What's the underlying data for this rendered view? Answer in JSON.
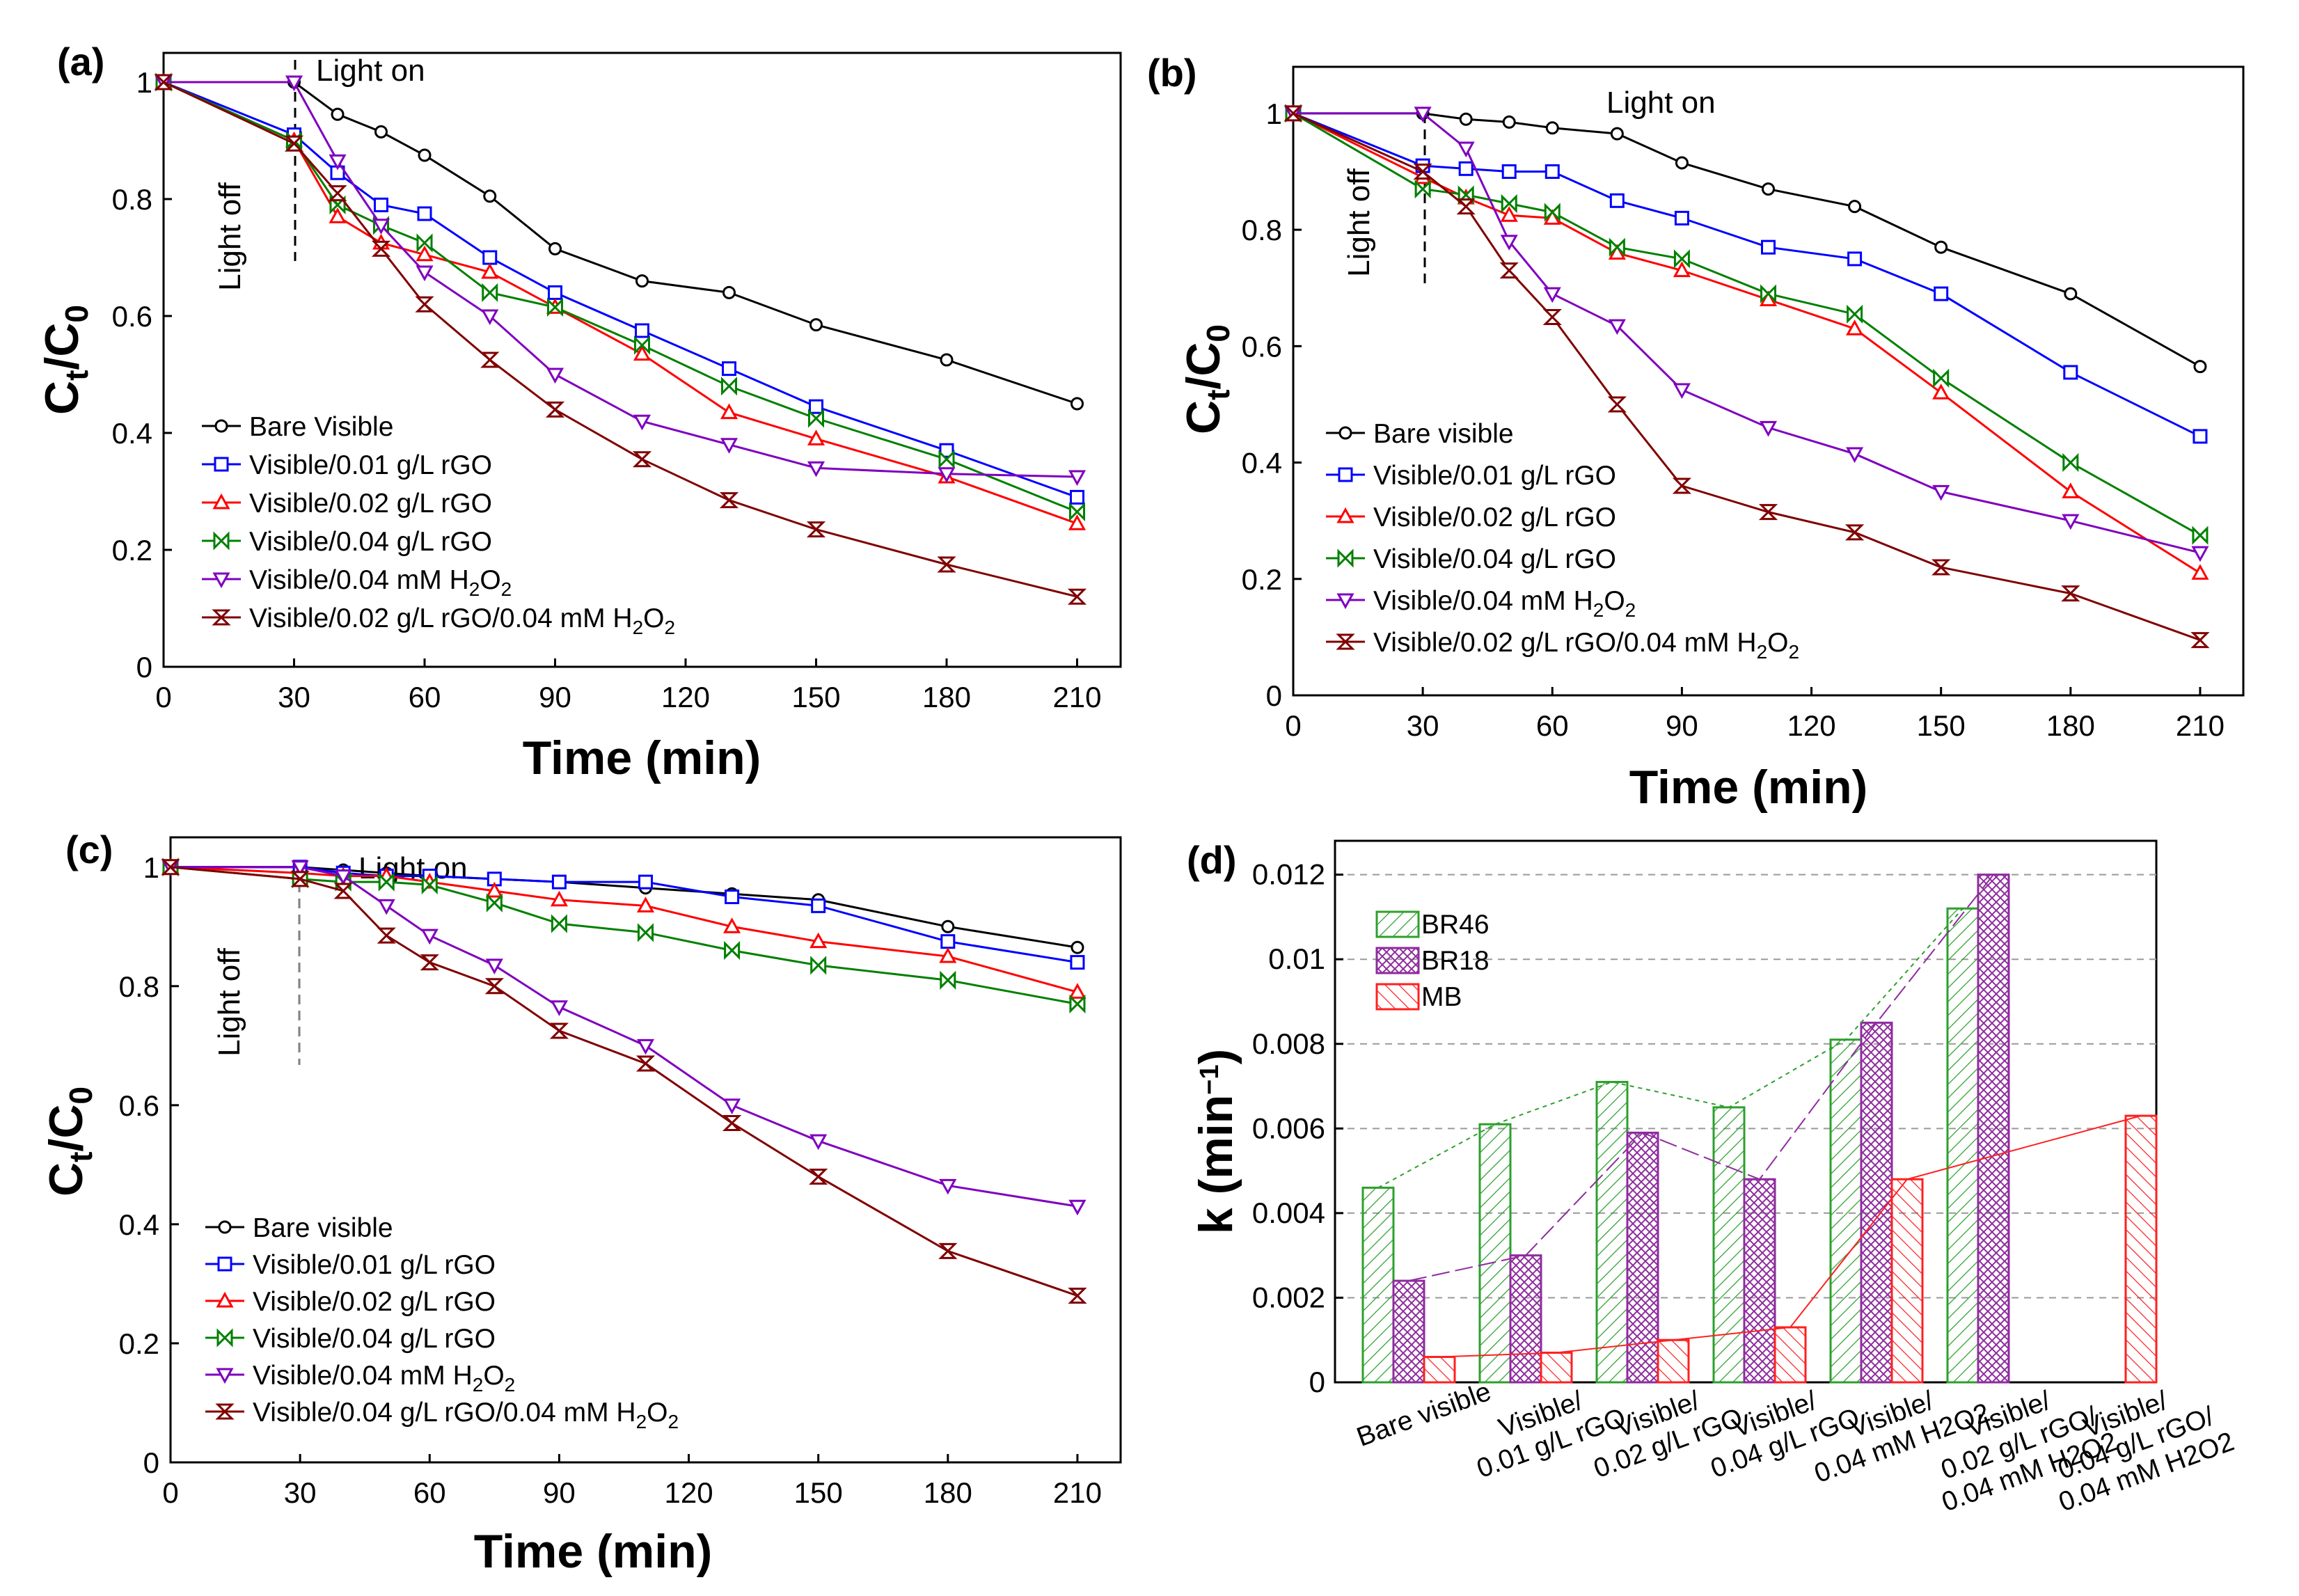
{
  "figure": {
    "panel_count": 4
  },
  "chart_data": [
    {
      "id": "a",
      "type": "line",
      "panel_label": "(a)",
      "xlabel": "Time (min)",
      "ylabel": "Ct/C0",
      "ylabel_main": "C",
      "ylabel_sub1": "t",
      "ylabel_slash": "/C",
      "ylabel_sub2": "0",
      "xlim": [
        0,
        220
      ],
      "ylim": [
        0,
        1.05
      ],
      "xticks": [
        0,
        30,
        60,
        90,
        120,
        150,
        180,
        210
      ],
      "yticks": [
        0,
        0.2,
        0.4,
        0.6,
        0.8,
        1
      ],
      "ytick_labels": [
        "0",
        "0.2",
        "0.4",
        "0.6",
        "0.8",
        "1"
      ],
      "annotations": {
        "light_on": "Light on",
        "light_off": "Light off"
      },
      "x": [
        0,
        30,
        40,
        50,
        60,
        75,
        90,
        110,
        130,
        150,
        180,
        210
      ],
      "series": [
        {
          "name": "Bare Visible",
          "color": "#000000",
          "marker": "circle",
          "values": [
            1,
            1,
            0.945,
            0.915,
            0.875,
            0.805,
            0.715,
            0.66,
            0.64,
            0.585,
            0.525,
            0.45
          ]
        },
        {
          "name": "Visible/0.01 g/L rGO",
          "color": "#0000ff",
          "marker": "square",
          "values": [
            1,
            0.91,
            0.845,
            0.79,
            0.775,
            0.7,
            0.64,
            0.575,
            0.51,
            0.445,
            0.37,
            0.29
          ]
        },
        {
          "name": "Visible/0.02 g/L rGO",
          "color": "#ff0000",
          "marker": "triangle-up",
          "values": [
            1,
            0.9,
            0.77,
            0.725,
            0.705,
            0.675,
            0.615,
            0.535,
            0.435,
            0.39,
            0.325,
            0.245
          ]
        },
        {
          "name": "Visible/0.04 g/L rGO",
          "color": "#008000",
          "marker": "bowtie",
          "values": [
            1,
            0.9,
            0.79,
            0.755,
            0.725,
            0.64,
            0.615,
            0.55,
            0.48,
            0.425,
            0.355,
            0.265
          ]
        },
        {
          "name": "Visible/0.04 mM H2O2",
          "name_main": "Visible/0.04 mM H",
          "name_sub": "2",
          "name_mid": "O",
          "name_sub2": "2",
          "color": "#7f00bf",
          "marker": "triangle-down",
          "values": [
            1,
            1,
            0.865,
            0.755,
            0.675,
            0.6,
            0.5,
            0.42,
            0.38,
            0.34,
            0.33,
            0.325
          ]
        },
        {
          "name": "Visible/0.02 g/L rGO/0.04 mM H2O2",
          "name_main": "Visible/0.02 g/L rGO/0.04 mM H",
          "name_sub": "2",
          "name_mid": "O",
          "name_sub2": "2",
          "color": "#800000",
          "marker": "hourglass",
          "values": [
            1,
            0.895,
            0.81,
            0.715,
            0.62,
            0.525,
            0.44,
            0.355,
            0.285,
            0.235,
            0.175,
            0.12
          ]
        }
      ]
    },
    {
      "id": "b",
      "type": "line",
      "panel_label": "(b)",
      "xlabel": "Time (min)",
      "ylabel": "Ct/C0",
      "ylabel_main": "C",
      "ylabel_sub1": "t",
      "ylabel_slash": "/C",
      "ylabel_sub2": "0",
      "xlim": [
        0,
        220
      ],
      "ylim": [
        0,
        1.08
      ],
      "xticks": [
        0,
        30,
        60,
        90,
        120,
        150,
        180,
        210
      ],
      "yticks": [
        0,
        0.2,
        0.4,
        0.6,
        0.8,
        1
      ],
      "ytick_labels": [
        "0",
        "0.2",
        "0.4",
        "0.6",
        "0.8",
        "1"
      ],
      "annotations": {
        "light_on": "Light on",
        "light_off": "Light off"
      },
      "x": [
        0,
        30,
        40,
        50,
        60,
        75,
        90,
        110,
        130,
        150,
        180,
        210
      ],
      "series": [
        {
          "name": "Bare visible",
          "color": "#000000",
          "marker": "circle",
          "values": [
            1,
            1,
            0.99,
            0.985,
            0.975,
            0.965,
            0.915,
            0.87,
            0.84,
            0.77,
            0.69,
            0.565
          ]
        },
        {
          "name": "Visible/0.01 g/L rGO",
          "color": "#0000ff",
          "marker": "square",
          "values": [
            1,
            0.91,
            0.905,
            0.9,
            0.9,
            0.85,
            0.82,
            0.77,
            0.75,
            0.69,
            0.555,
            0.445
          ]
        },
        {
          "name": "Visible/0.02 g/L rGO",
          "color": "#ff0000",
          "marker": "triangle-up",
          "values": [
            1,
            0.89,
            0.855,
            0.825,
            0.82,
            0.76,
            0.73,
            0.68,
            0.63,
            0.52,
            0.35,
            0.21
          ]
        },
        {
          "name": "Visible/0.04 g/L rGO",
          "color": "#008000",
          "marker": "bowtie",
          "values": [
            1,
            0.87,
            0.86,
            0.845,
            0.83,
            0.77,
            0.75,
            0.69,
            0.655,
            0.545,
            0.4,
            0.275
          ]
        },
        {
          "name": "Visible/0.04 mM H2O2",
          "name_main": "Visible/0.04 mM H",
          "name_sub": "2",
          "name_mid": "O",
          "name_sub2": "2",
          "color": "#7f00bf",
          "marker": "triangle-down",
          "values": [
            1,
            1,
            0.94,
            0.78,
            0.69,
            0.635,
            0.525,
            0.46,
            0.415,
            0.35,
            0.3,
            0.245
          ]
        },
        {
          "name": "Visible/0.02 g/L rGO/0.04 mM H2O2",
          "name_main": "Visible/0.02 g/L rGO/0.04 mM H",
          "name_sub": "2",
          "name_mid": "O",
          "name_sub2": "2",
          "color": "#800000",
          "marker": "hourglass",
          "values": [
            1,
            0.9,
            0.84,
            0.73,
            0.65,
            0.5,
            0.36,
            0.315,
            0.28,
            0.22,
            0.175,
            0.095
          ]
        }
      ]
    },
    {
      "id": "c",
      "type": "line",
      "panel_label": "(c)",
      "xlabel": "Time (min)",
      "ylabel": "Ct/C0",
      "ylabel_main": "C",
      "ylabel_sub1": "t",
      "ylabel_slash": "/C",
      "ylabel_sub2": "0",
      "xlim": [
        0,
        220
      ],
      "ylim": [
        0,
        1.05
      ],
      "xticks": [
        0,
        30,
        60,
        90,
        120,
        150,
        180,
        210
      ],
      "yticks": [
        0,
        0.2,
        0.4,
        0.6,
        0.8,
        1
      ],
      "ytick_labels": [
        "0",
        "0.2",
        "0.4",
        "0.6",
        "0.8",
        "1"
      ],
      "annotations": {
        "light_on": "Light on",
        "light_off": "Light off"
      },
      "x": [
        0,
        30,
        40,
        50,
        60,
        75,
        90,
        110,
        130,
        150,
        180,
        210
      ],
      "series": [
        {
          "name": "Bare visible",
          "color": "#000000",
          "marker": "circle",
          "values": [
            1,
            1,
            0.995,
            0.99,
            0.985,
            0.98,
            0.975,
            0.965,
            0.955,
            0.945,
            0.9,
            0.865
          ]
        },
        {
          "name": "Visible/0.01 g/L rGO",
          "color": "#0000ff",
          "marker": "square",
          "values": [
            1,
            1,
            0.99,
            0.985,
            0.985,
            0.98,
            0.975,
            0.975,
            0.95,
            0.935,
            0.875,
            0.84
          ]
        },
        {
          "name": "Visible/0.02 g/L rGO",
          "color": "#ff0000",
          "marker": "triangle-up",
          "values": [
            1,
            0.99,
            0.985,
            0.985,
            0.975,
            0.96,
            0.945,
            0.935,
            0.9,
            0.875,
            0.85,
            0.79
          ]
        },
        {
          "name": "Visible/0.04 g/L rGO",
          "color": "#008000",
          "marker": "bowtie",
          "values": [
            1,
            0.98,
            0.975,
            0.975,
            0.97,
            0.94,
            0.905,
            0.89,
            0.86,
            0.835,
            0.81,
            0.77
          ]
        },
        {
          "name": "Visible/0.04 mM H2O2",
          "name_main": "Visible/0.04 mM H",
          "name_sub": "2",
          "name_mid": "O",
          "name_sub2": "2",
          "color": "#7f00bf",
          "marker": "triangle-down",
          "values": [
            1,
            1,
            0.985,
            0.935,
            0.885,
            0.835,
            0.765,
            0.7,
            0.6,
            0.54,
            0.465,
            0.43
          ]
        },
        {
          "name": "Visible/0.04 g/L rGO/0.04 mM H2O2",
          "name_main": "Visible/0.04 g/L rGO/0.04 mM H",
          "name_sub": "2",
          "name_mid": "O",
          "name_sub2": "2",
          "color": "#800000",
          "marker": "hourglass",
          "values": [
            1,
            0.98,
            0.96,
            0.885,
            0.84,
            0.8,
            0.725,
            0.67,
            0.57,
            0.48,
            0.355,
            0.28
          ]
        }
      ]
    },
    {
      "id": "d",
      "type": "bar",
      "panel_label": "(d)",
      "ylabel": "k (min−1)",
      "ylabel_main": "k (min",
      "ylabel_sup": "−1",
      "ylabel_close": ")",
      "ylim": [
        0,
        0.0128
      ],
      "yticks": [
        0,
        0.002,
        0.004,
        0.006,
        0.008,
        0.01,
        0.012
      ],
      "ytick_labels": [
        "0",
        "0.002",
        "0.004",
        "0.006",
        "0.008",
        "0.01",
        "0.012"
      ],
      "grid": true,
      "categories": [
        "Bare visible",
        "Visible/ 0.01 g/L rGO",
        "Visible/ 0.02 g/L rGO",
        "Visible/ 0.04 g/L rGO",
        "Visible/ 0.04 mM H2O2",
        "Visible/ 0.02 g/L rGO/ 0.04 mM H2O2",
        "Visible/ 0.04 g/L rGO/ 0.04 mM H2O2"
      ],
      "category_lines": [
        [
          "Bare visible"
        ],
        [
          "Visible/",
          "0.01 g/L rGO"
        ],
        [
          "Visible/",
          "0.02 g/L rGO"
        ],
        [
          "Visible/",
          "0.04 g/L rGO"
        ],
        [
          "Visible/",
          "0.04 mM H2O2"
        ],
        [
          "Visible/",
          "0.02 g/L rGO/",
          "0.04 mM H2O2"
        ],
        [
          "Visible/",
          "0.04 g/L rGO/",
          "0.04 mM H2O2"
        ]
      ],
      "series": [
        {
          "name": "BR46",
          "color": "#2ca02c",
          "pattern": "hatch-diag",
          "values": [
            0.0046,
            0.0061,
            0.0071,
            0.0065,
            0.0081,
            0.0112,
            null
          ]
        },
        {
          "name": "BR18",
          "color": "#8e2c9e",
          "pattern": "hatch-cross",
          "values": [
            0.0024,
            0.003,
            0.0059,
            0.0048,
            0.0085,
            0.012,
            null
          ]
        },
        {
          "name": "MB",
          "color": "#ff2020",
          "pattern": "hatch-back",
          "values": [
            0.0006,
            0.0007,
            0.001,
            0.0013,
            0.0048,
            null,
            0.0063
          ]
        }
      ]
    }
  ]
}
